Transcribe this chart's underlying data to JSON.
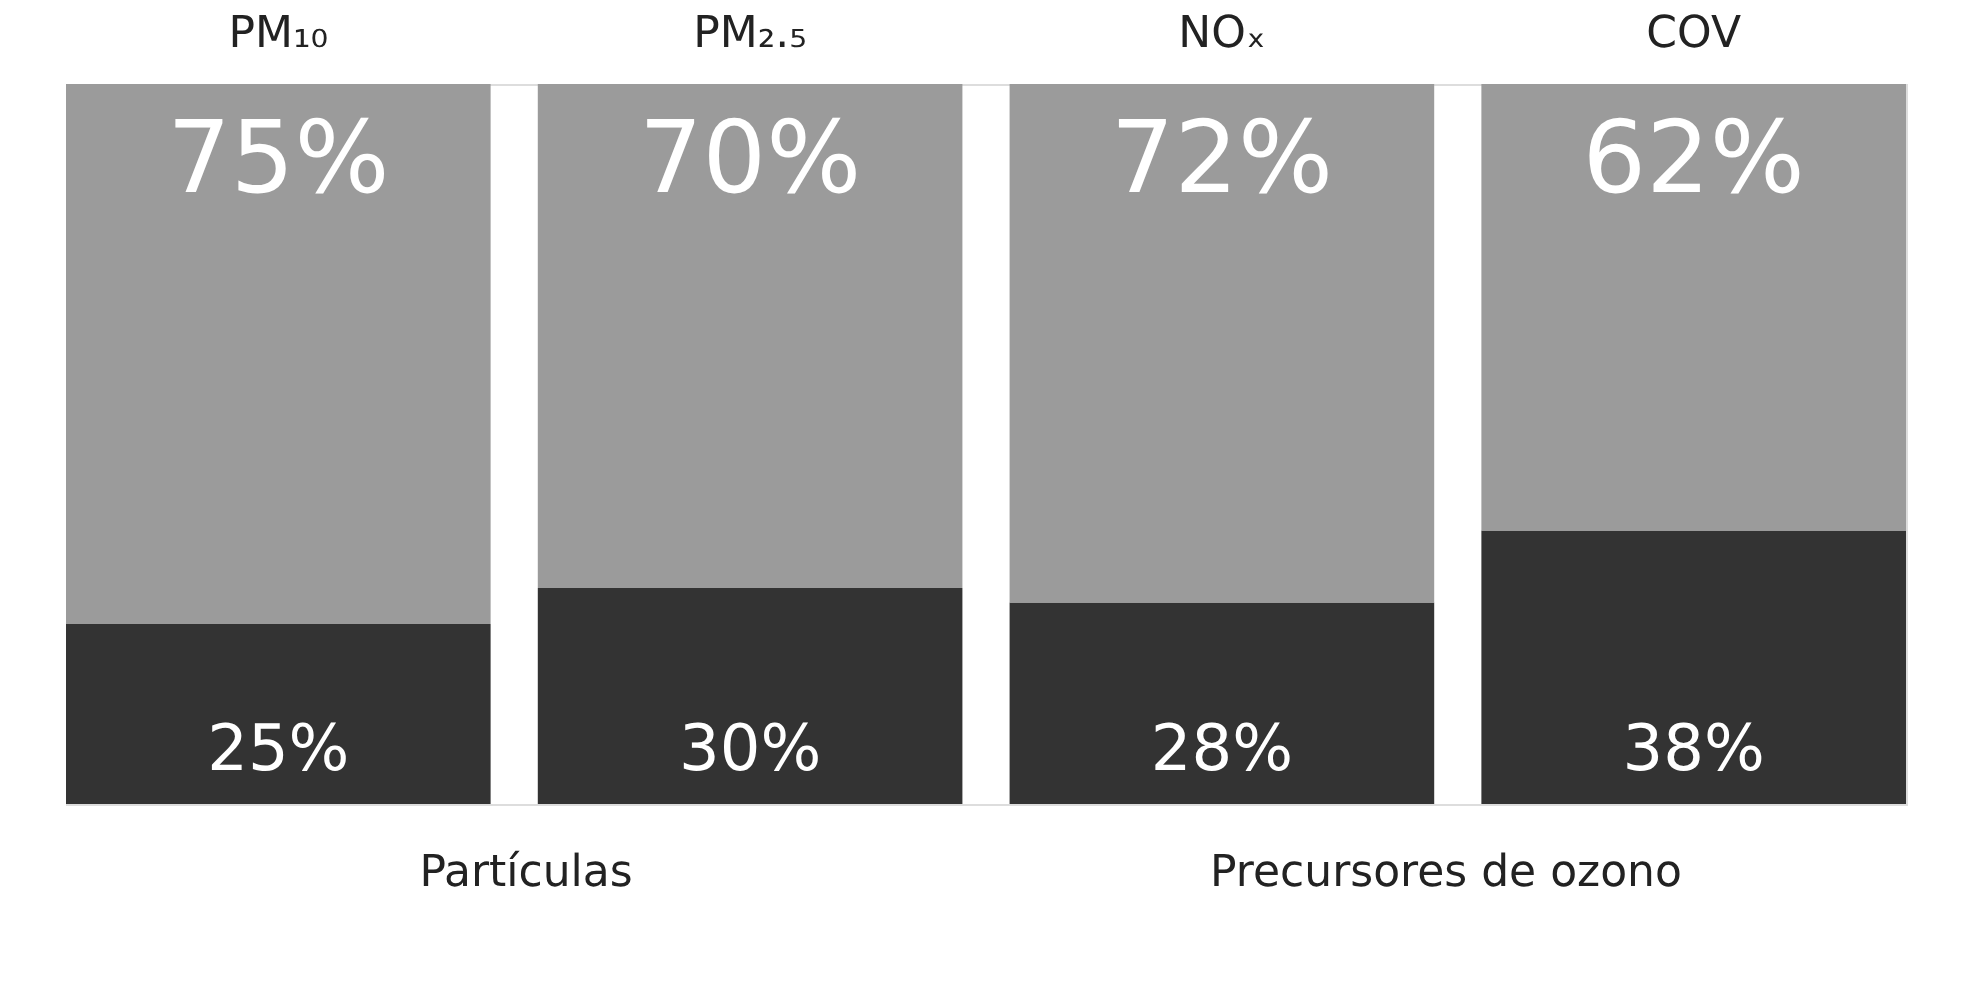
{
  "chart_data": {
    "type": "bar",
    "stacked": true,
    "categories": [
      "PM₁₀",
      "PM₂.₅",
      "NOₓ",
      "COV"
    ],
    "series": [
      {
        "color": "#333333",
        "values": [
          25,
          30,
          28,
          38
        ],
        "value_labels": [
          "25%",
          "30%",
          "28%",
          "38%"
        ]
      },
      {
        "color": "#9b9b9b",
        "values": [
          75,
          70,
          72,
          62
        ],
        "value_labels": [
          "75%",
          "70%",
          "72%",
          "62%"
        ]
      }
    ],
    "tick_labels": "x",
    "annotations": [
      "Partículas",
      "Precursores de ozono"
    ]
  }
}
